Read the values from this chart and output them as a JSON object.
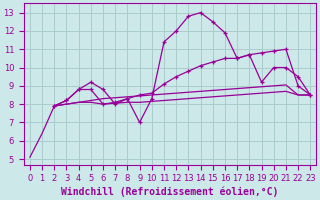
{
  "background_color": "#cce8e8",
  "grid_color": "#aacccc",
  "line_color": "#990099",
  "xlabel": "Windchill (Refroidissement éolien,°C)",
  "xlabel_fontsize": 7.0,
  "tick_fontsize": 6.0,
  "ylabel_ticks": [
    5,
    6,
    7,
    8,
    9,
    10,
    11,
    12,
    13
  ],
  "xlabel_ticks": [
    0,
    1,
    2,
    3,
    4,
    5,
    6,
    7,
    8,
    9,
    10,
    11,
    12,
    13,
    14,
    15,
    16,
    17,
    18,
    19,
    20,
    21,
    22,
    23
  ],
  "xlim": [
    -0.5,
    23.5
  ],
  "ylim": [
    4.7,
    13.5
  ],
  "series": {
    "s1_smooth": [
      5.1,
      6.4,
      7.9,
      8.0,
      8.1,
      8.2,
      8.3,
      8.35,
      8.4,
      8.45,
      8.5,
      8.55,
      8.6,
      8.65,
      8.7,
      8.75,
      8.8,
      8.85,
      8.9,
      8.95,
      9.0,
      9.05,
      8.5,
      8.5
    ],
    "s2_flat": [
      null,
      null,
      7.9,
      8.0,
      8.1,
      8.1,
      8.0,
      8.05,
      8.1,
      8.1,
      8.15,
      8.2,
      8.25,
      8.3,
      8.35,
      8.4,
      8.45,
      8.5,
      8.55,
      8.6,
      8.65,
      8.7,
      8.5,
      8.5
    ],
    "s3_volatile": [
      null,
      null,
      7.9,
      8.2,
      8.8,
      9.2,
      8.8,
      8.0,
      8.3,
      7.0,
      8.3,
      11.4,
      12.0,
      12.8,
      13.0,
      12.5,
      11.9,
      10.5,
      10.7,
      9.2,
      10.0,
      10.0,
      9.5,
      8.5
    ],
    "s4_rising": [
      null,
      null,
      7.9,
      8.2,
      8.8,
      8.8,
      8.0,
      8.1,
      8.3,
      8.5,
      8.6,
      9.1,
      9.5,
      9.8,
      10.1,
      10.3,
      10.5,
      10.5,
      10.7,
      10.8,
      10.9,
      11.0,
      9.0,
      8.5
    ]
  }
}
